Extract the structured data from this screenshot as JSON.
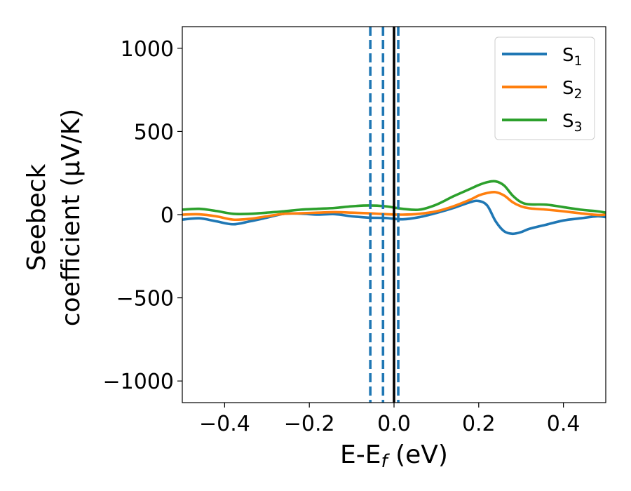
{
  "chart_data": {
    "type": "line",
    "xlabel": {
      "main": "E-E",
      "sub": "f",
      "unit": " (eV)"
    },
    "ylabel": {
      "line1": "Seebeck",
      "line2": "coefficient  (μV/K)"
    },
    "xlim": [
      -0.5,
      0.5
    ],
    "ylim": [
      -1130,
      1130
    ],
    "xticks": [
      -0.4,
      -0.2,
      0.0,
      0.2,
      0.4
    ],
    "xtick_labels": [
      "−0.4",
      "−0.2",
      "0.0",
      "0.2",
      "0.4"
    ],
    "yticks": [
      -1000,
      -500,
      0,
      500,
      1000
    ],
    "ytick_labels": [
      "−1000",
      "−500",
      "0",
      "500",
      "1000"
    ],
    "grid": false,
    "legend_position": "top-right",
    "series": [
      {
        "name": "S",
        "sub": "1",
        "color": "#1f77b4",
        "x": [
          -0.5,
          -0.46,
          -0.42,
          -0.38,
          -0.34,
          -0.3,
          -0.26,
          -0.22,
          -0.18,
          -0.14,
          -0.1,
          -0.06,
          -0.02,
          0.02,
          0.06,
          0.1,
          0.14,
          0.18,
          0.2,
          0.22,
          0.24,
          0.26,
          0.28,
          0.3,
          0.32,
          0.36,
          0.4,
          0.44,
          0.48,
          0.5
        ],
        "y": [
          -30,
          -22,
          -40,
          -58,
          -40,
          -18,
          5,
          6,
          0,
          3,
          -10,
          -18,
          -20,
          -28,
          -15,
          10,
          40,
          75,
          82,
          55,
          -40,
          -100,
          -115,
          -105,
          -85,
          -60,
          -35,
          -22,
          -10,
          -15
        ]
      },
      {
        "name": "S",
        "sub": "2",
        "color": "#ff7f0e",
        "x": [
          -0.5,
          -0.46,
          -0.42,
          -0.38,
          -0.34,
          -0.3,
          -0.26,
          -0.22,
          -0.18,
          -0.14,
          -0.1,
          -0.06,
          -0.02,
          0.02,
          0.06,
          0.1,
          0.14,
          0.18,
          0.2,
          0.22,
          0.24,
          0.26,
          0.28,
          0.3,
          0.32,
          0.36,
          0.4,
          0.44,
          0.48,
          0.5
        ],
        "y": [
          0,
          2,
          -10,
          -30,
          -25,
          -10,
          5,
          8,
          12,
          15,
          12,
          8,
          3,
          0,
          5,
          20,
          50,
          90,
          115,
          130,
          135,
          115,
          75,
          50,
          38,
          30,
          20,
          8,
          -2,
          0
        ]
      },
      {
        "name": "S",
        "sub": "3",
        "color": "#2ca02c",
        "x": [
          -0.5,
          -0.46,
          -0.42,
          -0.38,
          -0.34,
          -0.3,
          -0.26,
          -0.22,
          -0.18,
          -0.14,
          -0.1,
          -0.06,
          -0.02,
          0.02,
          0.06,
          0.1,
          0.14,
          0.18,
          0.2,
          0.22,
          0.24,
          0.26,
          0.28,
          0.3,
          0.32,
          0.36,
          0.4,
          0.44,
          0.48,
          0.5
        ],
        "y": [
          30,
          35,
          22,
          5,
          5,
          12,
          20,
          30,
          35,
          40,
          50,
          55,
          50,
          35,
          30,
          60,
          110,
          155,
          178,
          195,
          200,
          175,
          115,
          75,
          62,
          60,
          45,
          30,
          20,
          12
        ]
      }
    ],
    "vlines": [
      {
        "x": -0.056,
        "style": "dashed",
        "color": "#1f77b4"
      },
      {
        "x": -0.026,
        "style": "dashed",
        "color": "#1f77b4"
      },
      {
        "x": 0.01,
        "style": "dashed",
        "color": "#1f77b4"
      },
      {
        "x": 0.0,
        "style": "solid",
        "color": "#000000"
      }
    ]
  }
}
